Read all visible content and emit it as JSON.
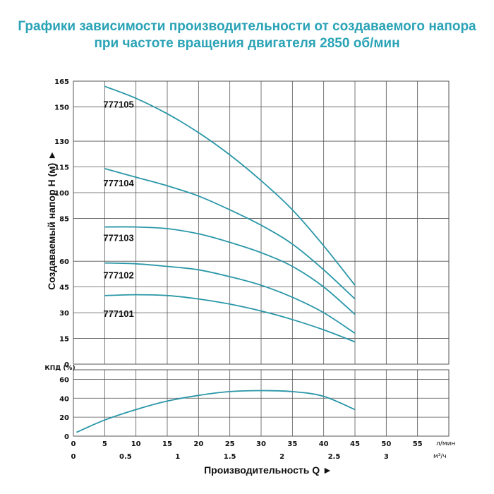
{
  "title_line1": "Графики зависимости производительности от создаваемого напора",
  "title_line2": "при частоте вращения двигателя 2850 об/мин",
  "colors": {
    "title": "#2aa3b6",
    "curve": "#2a97a8",
    "grid": "#555555"
  },
  "chart_data": [
    {
      "type": "line",
      "ylabel": "Создаваемый напор H (м) ►",
      "xlabel": "Производительность Q ►",
      "x_unit_top": "л/мин",
      "x_unit_bottom": "м³/ч",
      "xlim": [
        0,
        60
      ],
      "ylim": [
        0,
        165
      ],
      "x_ticks": [
        0,
        5,
        10,
        15,
        20,
        25,
        30,
        35,
        40,
        45,
        50,
        55
      ],
      "x_ticks_m3h": [
        "0",
        "0.5",
        "1",
        "1.5",
        "2",
        "2.5",
        "3"
      ],
      "y_ticks": [
        0,
        15,
        30,
        45,
        60,
        85,
        100,
        115,
        130,
        150,
        165
      ],
      "grid": true,
      "series": [
        {
          "name": "777105",
          "x": [
            5,
            10,
            15,
            20,
            25,
            30,
            35,
            40,
            45
          ],
          "y": [
            162,
            155,
            146,
            135,
            122,
            107,
            90,
            69,
            46
          ]
        },
        {
          "name": "777104",
          "x": [
            5,
            10,
            15,
            20,
            25,
            30,
            35,
            40,
            45
          ],
          "y": [
            114,
            109,
            104,
            98,
            90,
            81,
            70,
            55,
            38
          ]
        },
        {
          "name": "777103",
          "x": [
            5,
            10,
            15,
            20,
            25,
            30,
            35,
            40,
            45
          ],
          "y": [
            80,
            80,
            79,
            76,
            71,
            65,
            57,
            45,
            29
          ]
        },
        {
          "name": "777102",
          "x": [
            5,
            10,
            15,
            20,
            25,
            30,
            35,
            40,
            45
          ],
          "y": [
            59,
            58.5,
            57,
            55,
            51,
            46,
            39,
            30,
            18
          ]
        },
        {
          "name": "777101",
          "x": [
            5,
            10,
            15,
            20,
            25,
            30,
            35,
            40,
            45
          ],
          "y": [
            40,
            40.5,
            40,
            38,
            35,
            31,
            26,
            20,
            13
          ]
        }
      ]
    },
    {
      "type": "line",
      "ylabel": "КПД (%)",
      "xlim": [
        0,
        60
      ],
      "ylim": [
        0,
        70
      ],
      "y_ticks": [
        0,
        20,
        40,
        60
      ],
      "grid": true,
      "series": [
        {
          "name": "",
          "x": [
            0.5,
            5,
            10,
            15,
            20,
            25,
            30,
            35,
            40,
            45
          ],
          "y": [
            4,
            17,
            28,
            37,
            43,
            47,
            48,
            47,
            42,
            28
          ]
        }
      ]
    }
  ]
}
